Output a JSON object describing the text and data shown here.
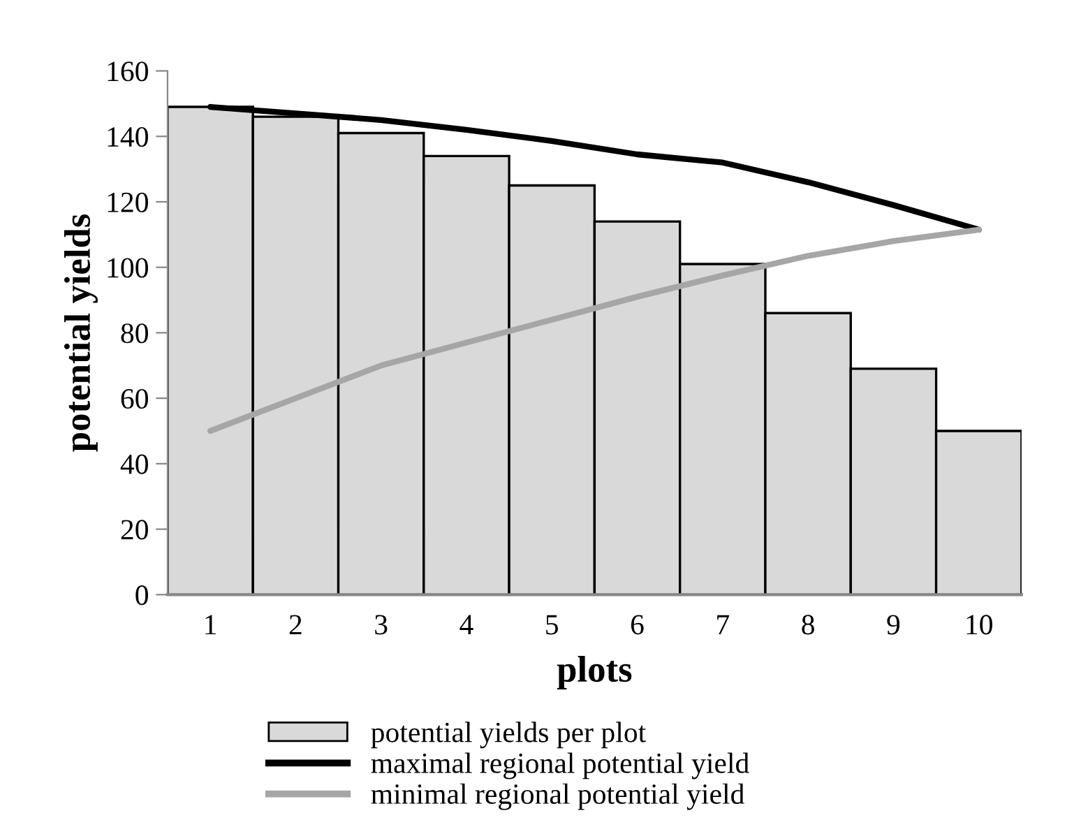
{
  "chart_data": {
    "type": "bar",
    "xlabel": "plots",
    "ylabel": "potential yields",
    "categories": [
      "1",
      "2",
      "3",
      "4",
      "5",
      "6",
      "7",
      "8",
      "9",
      "10"
    ],
    "series": [
      {
        "name": "potential yields per plot",
        "color": "#d9d9d9",
        "values": [
          149,
          146,
          141,
          134,
          125,
          114,
          101,
          86,
          69,
          50
        ]
      },
      {
        "name": "maximal regional potential yield",
        "type": "line",
        "color": "#000000",
        "values": [
          149,
          147,
          145,
          142,
          138.6,
          134.5,
          132,
          126,
          119,
          111.5
        ]
      },
      {
        "name": "minimal regional potential yield",
        "type": "line",
        "color": "#a6a6a6",
        "values": [
          50,
          60,
          70,
          77,
          84,
          91,
          97.5,
          103.5,
          108,
          111.5
        ]
      }
    ],
    "ylim": [
      0,
      160
    ],
    "yticks": [
      0,
      20,
      40,
      60,
      80,
      100,
      120,
      140,
      160
    ],
    "grid": false,
    "legend": "bottom",
    "marker": "none",
    "line_style": "solid"
  }
}
